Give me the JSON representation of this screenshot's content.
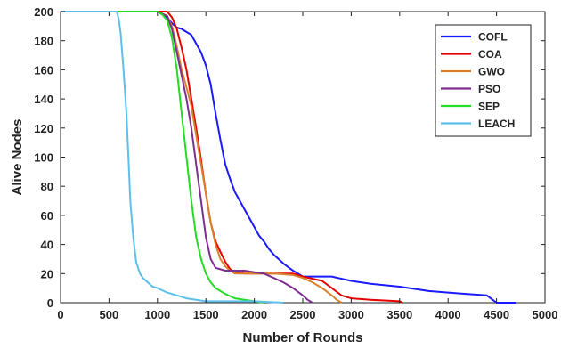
{
  "chart_data": {
    "type": "line",
    "xlabel": "Number of Rounds",
    "ylabel": "Alive Nodes",
    "xlim": [
      0,
      5000
    ],
    "ylim": [
      0,
      200
    ],
    "xticks": [
      0,
      500,
      1000,
      1500,
      2000,
      2500,
      3000,
      3500,
      4000,
      4500,
      5000
    ],
    "yticks": [
      0,
      20,
      40,
      60,
      80,
      100,
      120,
      140,
      160,
      180,
      200
    ],
    "grid": false,
    "legend_position": "top-right",
    "series": [
      {
        "name": "COFL",
        "color": "#1a1aff",
        "points": [
          [
            0,
            200
          ],
          [
            1000,
            200
          ],
          [
            1050,
            198
          ],
          [
            1100,
            196
          ],
          [
            1150,
            192
          ],
          [
            1200,
            189
          ],
          [
            1250,
            188
          ],
          [
            1300,
            186
          ],
          [
            1350,
            184
          ],
          [
            1400,
            178
          ],
          [
            1450,
            172
          ],
          [
            1500,
            163
          ],
          [
            1550,
            150
          ],
          [
            1600,
            130
          ],
          [
            1650,
            112
          ],
          [
            1700,
            95
          ],
          [
            1750,
            85
          ],
          [
            1800,
            76
          ],
          [
            1850,
            70
          ],
          [
            1900,
            64
          ],
          [
            1950,
            58
          ],
          [
            2000,
            52
          ],
          [
            2050,
            46
          ],
          [
            2100,
            42
          ],
          [
            2150,
            37
          ],
          [
            2200,
            33
          ],
          [
            2250,
            30
          ],
          [
            2300,
            27
          ],
          [
            2400,
            22
          ],
          [
            2500,
            18
          ],
          [
            2600,
            18
          ],
          [
            2800,
            18
          ],
          [
            3000,
            15
          ],
          [
            3200,
            13
          ],
          [
            3500,
            11
          ],
          [
            3800,
            8
          ],
          [
            4000,
            7
          ],
          [
            4200,
            6
          ],
          [
            4400,
            5
          ],
          [
            4500,
            0
          ],
          [
            4700,
            0
          ]
        ]
      },
      {
        "name": "COA",
        "color": "#e60000",
        "points": [
          [
            0,
            200
          ],
          [
            1100,
            200
          ],
          [
            1150,
            196
          ],
          [
            1200,
            188
          ],
          [
            1250,
            175
          ],
          [
            1300,
            160
          ],
          [
            1350,
            140
          ],
          [
            1400,
            120
          ],
          [
            1450,
            98
          ],
          [
            1500,
            75
          ],
          [
            1550,
            55
          ],
          [
            1600,
            42
          ],
          [
            1650,
            35
          ],
          [
            1700,
            28
          ],
          [
            1750,
            23
          ],
          [
            1800,
            21
          ],
          [
            1900,
            20
          ],
          [
            2000,
            20
          ],
          [
            2200,
            20
          ],
          [
            2400,
            20
          ],
          [
            2500,
            18
          ],
          [
            2700,
            15
          ],
          [
            2800,
            10
          ],
          [
            2900,
            5
          ],
          [
            3000,
            3
          ],
          [
            3200,
            2
          ],
          [
            3500,
            1
          ],
          [
            3530,
            0
          ]
        ]
      },
      {
        "name": "GWO",
        "color": "#d9822b",
        "points": [
          [
            0,
            200
          ],
          [
            1000,
            200
          ],
          [
            1100,
            197
          ],
          [
            1150,
            190
          ],
          [
            1200,
            176
          ],
          [
            1250,
            160
          ],
          [
            1300,
            148
          ],
          [
            1350,
            135
          ],
          [
            1400,
            115
          ],
          [
            1450,
            95
          ],
          [
            1500,
            75
          ],
          [
            1550,
            55
          ],
          [
            1600,
            40
          ],
          [
            1650,
            30
          ],
          [
            1700,
            25
          ],
          [
            1750,
            22
          ],
          [
            1800,
            20
          ],
          [
            2000,
            20
          ],
          [
            2200,
            20
          ],
          [
            2400,
            19
          ],
          [
            2500,
            17
          ],
          [
            2600,
            14
          ],
          [
            2700,
            10
          ],
          [
            2800,
            5
          ],
          [
            2850,
            2
          ],
          [
            2900,
            0
          ]
        ]
      },
      {
        "name": "PSO",
        "color": "#7e2f8e",
        "points": [
          [
            0,
            200
          ],
          [
            1000,
            200
          ],
          [
            1100,
            197
          ],
          [
            1150,
            188
          ],
          [
            1200,
            172
          ],
          [
            1250,
            156
          ],
          [
            1300,
            140
          ],
          [
            1350,
            120
          ],
          [
            1400,
            95
          ],
          [
            1450,
            70
          ],
          [
            1500,
            45
          ],
          [
            1550,
            30
          ],
          [
            1600,
            24
          ],
          [
            1700,
            22
          ],
          [
            1800,
            22
          ],
          [
            1900,
            22
          ],
          [
            2000,
            21
          ],
          [
            2100,
            20
          ],
          [
            2200,
            17
          ],
          [
            2300,
            14
          ],
          [
            2400,
            10
          ],
          [
            2500,
            5
          ],
          [
            2550,
            2
          ],
          [
            2600,
            0
          ]
        ]
      },
      {
        "name": "SEP",
        "color": "#22dd22",
        "points": [
          [
            0,
            200
          ],
          [
            1000,
            200
          ],
          [
            1050,
            198
          ],
          [
            1100,
            194
          ],
          [
            1150,
            182
          ],
          [
            1200,
            160
          ],
          [
            1250,
            130
          ],
          [
            1300,
            100
          ],
          [
            1350,
            70
          ],
          [
            1400,
            45
          ],
          [
            1450,
            30
          ],
          [
            1500,
            20
          ],
          [
            1550,
            14
          ],
          [
            1600,
            10
          ],
          [
            1700,
            6
          ],
          [
            1800,
            3
          ],
          [
            1900,
            2
          ],
          [
            2000,
            1
          ],
          [
            2100,
            0
          ]
        ]
      },
      {
        "name": "LEACH",
        "color": "#5bc0eb",
        "points": [
          [
            0,
            200
          ],
          [
            580,
            200
          ],
          [
            600,
            195
          ],
          [
            620,
            185
          ],
          [
            650,
            160
          ],
          [
            680,
            130
          ],
          [
            700,
            100
          ],
          [
            720,
            70
          ],
          [
            750,
            45
          ],
          [
            780,
            28
          ],
          [
            820,
            20
          ],
          [
            850,
            17
          ],
          [
            900,
            14
          ],
          [
            950,
            11
          ],
          [
            1000,
            10
          ],
          [
            1100,
            7
          ],
          [
            1200,
            5
          ],
          [
            1300,
            3
          ],
          [
            1400,
            2
          ],
          [
            1500,
            1
          ],
          [
            1700,
            1
          ],
          [
            2000,
            1
          ],
          [
            2300,
            0
          ]
        ]
      }
    ]
  }
}
